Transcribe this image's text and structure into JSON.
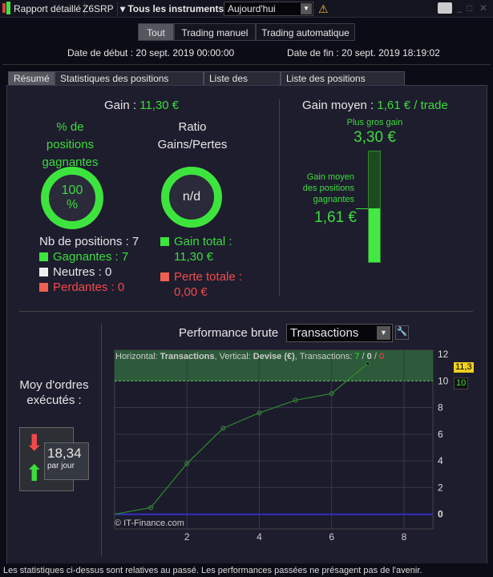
{
  "toolbar": {
    "title": "Rapport détaillé",
    "account": "Z6SRP",
    "instruments": "Tous les instruments",
    "period": "Aujourd'hui",
    "warning_icon": "warning-icon",
    "print_icon": "printer-icon"
  },
  "filters": [
    {
      "label": "Tout",
      "active": true
    },
    {
      "label": "Trading manuel"
    },
    {
      "label": "Trading automatique"
    }
  ],
  "dates": {
    "start": "Date de début : 20 sept. 2019 00:00:00",
    "end": "Date de fin : 20 sept. 2019 18:19:02"
  },
  "tabs": [
    "Résumé",
    "Statistiques des positions clôturées",
    "Liste des ordres",
    "Liste des positions clôturées"
  ],
  "summary": {
    "gain_label": "Gain :",
    "gain_value": "11,30 €",
    "pct_title": "% de positions gagnantes",
    "pct_value": "100 %",
    "pct_fraction": 1.0,
    "ratio_title": "Ratio Gains/Pertes",
    "ratio_value": "n/d",
    "nb_positions": "Nb de positions : 7",
    "winning": "Gagnantes : 7",
    "neutral": "Neutres : 0",
    "losing": "Perdantes : 0",
    "total_gain_label": "Gain total :",
    "total_gain_value": "11,30 €",
    "total_loss_label": "Perte totale :",
    "total_loss_value": "0,00 €",
    "avg_gain_label": "Gain moyen :",
    "avg_gain_value": "1,61 € / trade",
    "max_gain_label": "Plus gros gain",
    "max_gain_value": "3,30 €",
    "avg_win_label": "Gain moyen des positions gagnantes",
    "avg_win_value": "1,61 €",
    "avg_win_fraction": 0.488
  },
  "orders": {
    "label": "Moy d'ordres exécutés :",
    "value": "18,34",
    "unit": "par jour"
  },
  "performance": {
    "title": "Performance brute",
    "select": "Transactions",
    "info_h": "Horizontal: ",
    "info_h_val": "Transactions",
    "info_v": ", Vertical: ",
    "info_v_val": "Devise (€)",
    "info_t": ", Transactions: ",
    "t_win": "7",
    "t_neu": "0",
    "t_los": "0",
    "sep": " / ",
    "copyright": "© IT-Finance.com",
    "last_label": "11,3",
    "threshold_label": "10"
  },
  "chart_data": {
    "type": "line",
    "x": [
      0,
      1,
      2,
      3,
      4,
      5,
      6,
      7
    ],
    "values": [
      0,
      0.5,
      3.8,
      6.45,
      7.6,
      8.55,
      9.05,
      11.3
    ],
    "xlim": [
      0,
      8.8
    ],
    "ylim": [
      -1.1,
      12.3
    ],
    "xticks": [
      "2",
      "4",
      "6",
      "8"
    ],
    "yticks": [
      "0",
      "2",
      "4",
      "6",
      "8",
      "10",
      "12"
    ],
    "threshold": 10,
    "xlabel": "Transactions",
    "ylabel": "Devise (€)",
    "colors": {
      "line": "#2f8a2f",
      "zone": "#2d5a3a",
      "zero": "#3030c0"
    }
  },
  "footer": "Les statistiques ci-dessus sont relatives au passé. Les performances passées ne présagent pas de l'avenir."
}
